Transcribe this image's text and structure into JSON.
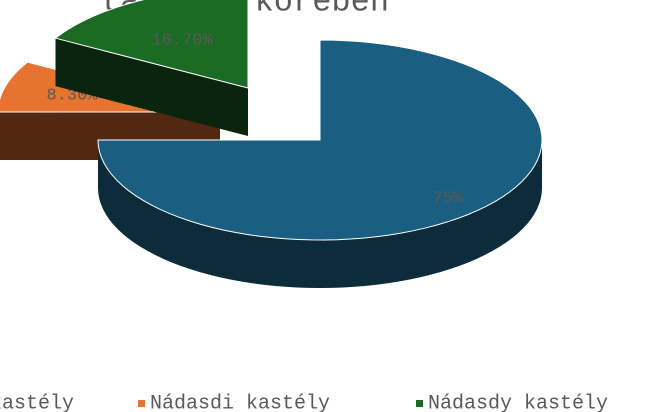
{
  "chart_data": {
    "type": "pie3d",
    "title": "tanulók körében",
    "categories": [
      "kastély",
      "Nádasdi kastély",
      "Nádasdy kastély"
    ],
    "values": [
      75,
      8.3,
      16.7
    ],
    "value_labels": [
      "75%",
      "8.30%",
      "16.70%"
    ],
    "colors": [
      "#1a5f82",
      "#e8722f",
      "#1c6b24"
    ]
  }
}
